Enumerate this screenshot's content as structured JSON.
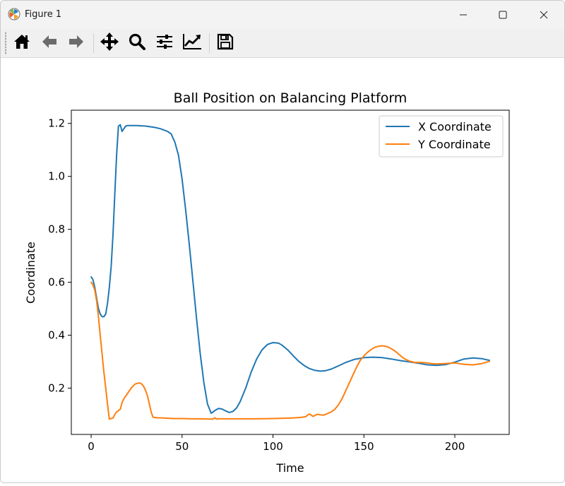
{
  "window": {
    "title": "Figure 1",
    "app_icon": "matplotlib-icon",
    "controls": [
      "minimize-icon",
      "maximize-icon",
      "close-icon"
    ]
  },
  "toolbar": {
    "tools": [
      "home-icon",
      "back-arrow-icon",
      "forward-arrow-icon",
      "pan-icon",
      "zoom-icon",
      "subplots-config-icon",
      "edit-axes-icon",
      "save-icon"
    ]
  },
  "chart_data": {
    "type": "line",
    "title": "Ball Position on Balancing Platform",
    "xlabel": "Time",
    "ylabel": "Coordinate",
    "xlim": [
      -10.9,
      229.9
    ],
    "ylim": [
      0.025,
      1.25
    ],
    "xticks": [
      0,
      50,
      100,
      150,
      200
    ],
    "yticks": [
      0.2,
      0.4,
      0.6,
      0.8,
      1.0,
      1.2
    ],
    "xtick_labels": [
      "0",
      "50",
      "100",
      "150",
      "200"
    ],
    "ytick_labels": [
      "0.2",
      "0.4",
      "0.6",
      "0.8",
      "1.0",
      "1.2"
    ],
    "grid": false,
    "legend_position": "upper right",
    "series": [
      {
        "name": "X Coordinate",
        "color": "#1f77b4",
        "x": [
          0,
          1,
          2,
          3,
          4,
          5,
          6,
          7,
          8,
          9,
          10,
          11,
          12,
          13,
          14,
          15,
          16,
          17,
          18,
          19,
          20,
          25,
          30,
          35,
          38,
          40,
          42,
          44,
          46,
          48,
          50,
          52,
          54,
          56,
          58,
          60,
          62,
          64,
          66,
          67,
          68,
          70,
          72,
          74,
          76,
          78,
          80,
          82,
          85,
          88,
          91,
          94,
          97,
          100,
          103,
          105,
          108,
          111,
          114,
          117,
          120,
          123,
          126,
          129,
          132,
          135,
          140,
          145,
          150,
          155,
          160,
          165,
          170,
          175,
          180,
          185,
          190,
          195,
          200,
          205,
          210,
          215,
          219
        ],
        "y": [
          0.62,
          0.61,
          0.58,
          0.54,
          0.5,
          0.48,
          0.47,
          0.47,
          0.48,
          0.52,
          0.58,
          0.66,
          0.78,
          0.93,
          1.08,
          1.19,
          1.195,
          1.17,
          1.18,
          1.19,
          1.192,
          1.192,
          1.19,
          1.185,
          1.18,
          1.175,
          1.17,
          1.16,
          1.13,
          1.08,
          0.99,
          0.87,
          0.74,
          0.6,
          0.46,
          0.33,
          0.22,
          0.14,
          0.105,
          0.11,
          0.115,
          0.123,
          0.121,
          0.114,
          0.108,
          0.112,
          0.125,
          0.15,
          0.2,
          0.26,
          0.31,
          0.345,
          0.365,
          0.372,
          0.37,
          0.362,
          0.345,
          0.323,
          0.302,
          0.286,
          0.274,
          0.267,
          0.264,
          0.266,
          0.272,
          0.281,
          0.297,
          0.309,
          0.315,
          0.317,
          0.315,
          0.31,
          0.304,
          0.299,
          0.294,
          0.288,
          0.286,
          0.289,
          0.298,
          0.31,
          0.314,
          0.311,
          0.305
        ]
      },
      {
        "name": "Y Coordinate",
        "color": "#ff7f0e",
        "x": [
          0,
          1,
          2,
          3,
          4,
          5,
          6,
          7,
          8,
          9,
          10,
          11,
          12,
          13,
          14,
          15,
          16,
          17,
          18,
          19,
          20,
          22,
          24,
          26,
          27,
          28,
          29,
          30,
          31,
          32,
          33,
          34,
          36,
          40,
          45,
          50,
          55,
          60,
          65,
          67,
          68,
          69,
          70,
          75,
          80,
          90,
          100,
          110,
          115,
          118,
          119,
          120,
          121,
          122,
          123,
          124,
          125,
          126,
          128,
          130,
          132,
          134,
          136,
          138,
          140,
          142,
          144,
          146,
          148,
          150,
          152,
          154,
          156,
          158,
          160,
          162,
          164,
          166,
          168,
          170,
          172,
          175,
          178,
          181,
          184,
          187,
          190,
          195,
          200,
          205,
          210,
          215,
          219
        ],
        "y": [
          0.6,
          0.59,
          0.57,
          0.53,
          0.47,
          0.4,
          0.33,
          0.26,
          0.2,
          0.14,
          0.083,
          0.085,
          0.087,
          0.1,
          0.11,
          0.115,
          0.12,
          0.145,
          0.16,
          0.17,
          0.18,
          0.2,
          0.215,
          0.219,
          0.219,
          0.214,
          0.205,
          0.19,
          0.17,
          0.14,
          0.11,
          0.09,
          0.088,
          0.087,
          0.085,
          0.085,
          0.084,
          0.084,
          0.083,
          0.083,
          0.088,
          0.083,
          0.084,
          0.084,
          0.084,
          0.084,
          0.085,
          0.087,
          0.089,
          0.092,
          0.098,
          0.102,
          0.098,
          0.093,
          0.097,
          0.1,
          0.101,
          0.099,
          0.098,
          0.104,
          0.11,
          0.12,
          0.137,
          0.16,
          0.19,
          0.22,
          0.25,
          0.28,
          0.305,
          0.322,
          0.335,
          0.346,
          0.354,
          0.358,
          0.36,
          0.358,
          0.353,
          0.345,
          0.335,
          0.323,
          0.312,
          0.302,
          0.297,
          0.297,
          0.296,
          0.293,
          0.291,
          0.293,
          0.295,
          0.29,
          0.288,
          0.293,
          0.301
        ]
      }
    ]
  }
}
